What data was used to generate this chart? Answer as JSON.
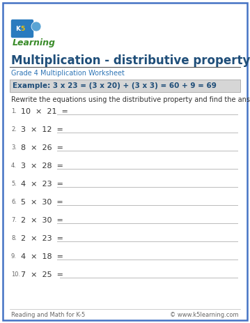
{
  "title": "Multiplication - distributive property",
  "subtitle": "Grade 4 Multiplication Worksheet",
  "example_text": "Example: 3 x 23 = (3 x 20) + (3 x 3) = 60 + 9 = 69",
  "instruction": "Rewrite the equations using the distributive property and find the answer.",
  "problems_num": [
    "1.",
    "2.",
    "3.",
    "4.",
    "5.",
    "6.",
    "7.",
    "8.",
    "9.",
    "10."
  ],
  "problems_eq": [
    "10  ×  21  =",
    "3  ×  12  =",
    "8  ×  26  =",
    "3  ×  28  =",
    "4  ×  23  =",
    "5  ×  30  =",
    "2  ×  30  =",
    "2  ×  23  =",
    "4  ×  18  =",
    "7  ×  25  ="
  ],
  "footer_left": "Reading and Math for K-5",
  "footer_right": "© www.k5learning.com",
  "bg_color": "#ffffff",
  "outer_border_color": "#4472c4",
  "title_color": "#1f4e79",
  "subtitle_color": "#2e75b6",
  "example_bg": "#d6d6d6",
  "example_border": "#999999",
  "example_text_color": "#1f4e79",
  "problem_color": "#333333",
  "num_color": "#666666",
  "line_color": "#bbbbbb",
  "footer_color": "#666666",
  "title_line_color": "#555555",
  "logo_box_color": "#2a7bbf",
  "logo_k5_color": "#ffffff",
  "logo_5_color": "#f5c400",
  "logo_learn_color": "#3a8c2a"
}
